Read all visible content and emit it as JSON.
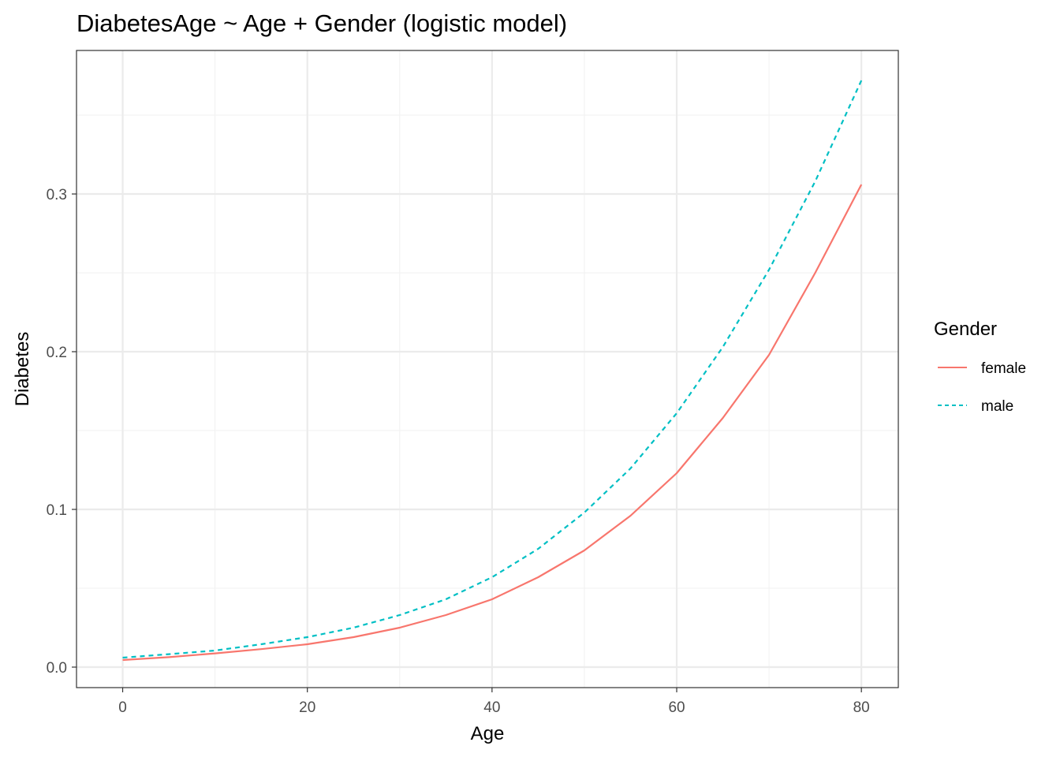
{
  "chart_data": {
    "type": "line",
    "title": "DiabetesAge ~ Age + Gender (logistic model)",
    "xlabel": "Age",
    "ylabel": "Diabetes",
    "xlim": [
      -5,
      84
    ],
    "ylim": [
      -0.013,
      0.391
    ],
    "xticks": [
      0,
      20,
      40,
      60,
      80
    ],
    "xtick_labels": [
      "0",
      "20",
      "40",
      "60",
      "80"
    ],
    "yticks": [
      0.0,
      0.1,
      0.2,
      0.3
    ],
    "ytick_labels": [
      "0.0",
      "0.1",
      "0.2",
      "0.3"
    ],
    "grid": true,
    "legend": {
      "title": "Gender",
      "position": "right"
    },
    "series": [
      {
        "name": "female",
        "color": "#F8766D",
        "line_style": "solid",
        "x": [
          0,
          5,
          10,
          15,
          20,
          25,
          30,
          35,
          40,
          45,
          50,
          55,
          60,
          65,
          70,
          75,
          80
        ],
        "y": [
          0.0045,
          0.0063,
          0.0087,
          0.0114,
          0.0145,
          0.019,
          0.025,
          0.033,
          0.043,
          0.057,
          0.074,
          0.096,
          0.123,
          0.158,
          0.198,
          0.25,
          0.306
        ]
      },
      {
        "name": "male",
        "color": "#00BFC4",
        "line_style": "dashed",
        "x": [
          0,
          5,
          10,
          15,
          20,
          25,
          30,
          35,
          40,
          45,
          50,
          55,
          60,
          65,
          70,
          75,
          80
        ],
        "y": [
          0.006,
          0.0082,
          0.0105,
          0.0145,
          0.019,
          0.025,
          0.033,
          0.043,
          0.057,
          0.075,
          0.098,
          0.126,
          0.161,
          0.203,
          0.252,
          0.308,
          0.372
        ]
      }
    ]
  }
}
